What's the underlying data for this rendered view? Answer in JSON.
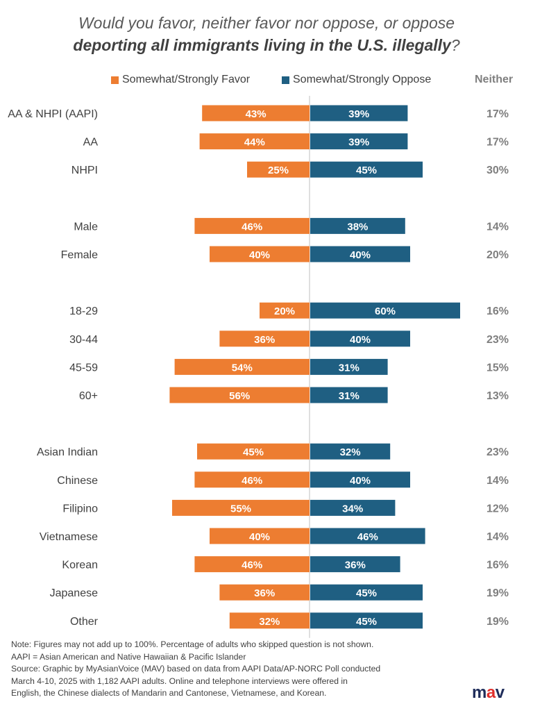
{
  "title": {
    "line1": "Would you favor, neither favor nor oppose, or oppose",
    "line2_bold": "deporting all immigrants living in the U.S. illegally",
    "line2_end": "?"
  },
  "legend": {
    "favor": "Somewhat/Strongly Favor",
    "oppose": "Somewhat/Strongly Oppose",
    "neither": "Neither"
  },
  "colors": {
    "favor": "#ed7d31",
    "oppose": "#1f5f82",
    "axis": "#bfbfbf",
    "neither_text": "#7f7f7f"
  },
  "chart_data": {
    "type": "bar",
    "orientation": "horizontal-diverging",
    "categories": [
      "AA & NHPI (AAPI)",
      "AA",
      "NHPI",
      "Male",
      "Female",
      "18-29",
      "30-44",
      "45-59",
      "60+",
      "Asian Indian",
      "Chinese",
      "Filipino",
      "Vietnamese",
      "Korean",
      "Japanese",
      "Other"
    ],
    "groups": [
      [
        "AA & NHPI (AAPI)",
        "AA",
        "NHPI"
      ],
      [
        "Male",
        "Female"
      ],
      [
        "18-29",
        "30-44",
        "45-59",
        "60+"
      ],
      [
        "Asian Indian",
        "Chinese",
        "Filipino",
        "Vietnamese",
        "Korean",
        "Japanese",
        "Other"
      ]
    ],
    "series": [
      {
        "name": "Somewhat/Strongly Favor",
        "values": [
          43,
          44,
          25,
          46,
          40,
          20,
          36,
          54,
          56,
          45,
          46,
          55,
          40,
          46,
          36,
          32
        ]
      },
      {
        "name": "Somewhat/Strongly Oppose",
        "values": [
          39,
          39,
          45,
          38,
          40,
          60,
          40,
          31,
          31,
          32,
          40,
          34,
          46,
          36,
          45,
          45
        ]
      },
      {
        "name": "Neither",
        "values": [
          17,
          17,
          30,
          14,
          20,
          16,
          23,
          15,
          13,
          23,
          14,
          12,
          14,
          16,
          19,
          19
        ]
      }
    ],
    "unit": "%",
    "legend_position": "top",
    "grid": false
  },
  "notes": [
    "Note: Figures may not add up to 100%. Percentage of adults who skipped  question is not shown.",
    "AAPI = Asian American and Native Hawaiian & Pacific Islander",
    "Source:  Graphic by MyAsianVoice (MAV) based on data from AAPI Data/AP-NORC Poll conducted",
    "March 4-10, 2025 with 1,182 AAPI adults. Online and  telephone interviews were offered in",
    "English, the Chinese dialects of Mandarin and Cantonese, Vietnamese, and Korean."
  ],
  "logo": {
    "m": "m",
    "a": "a",
    "v": "v"
  }
}
